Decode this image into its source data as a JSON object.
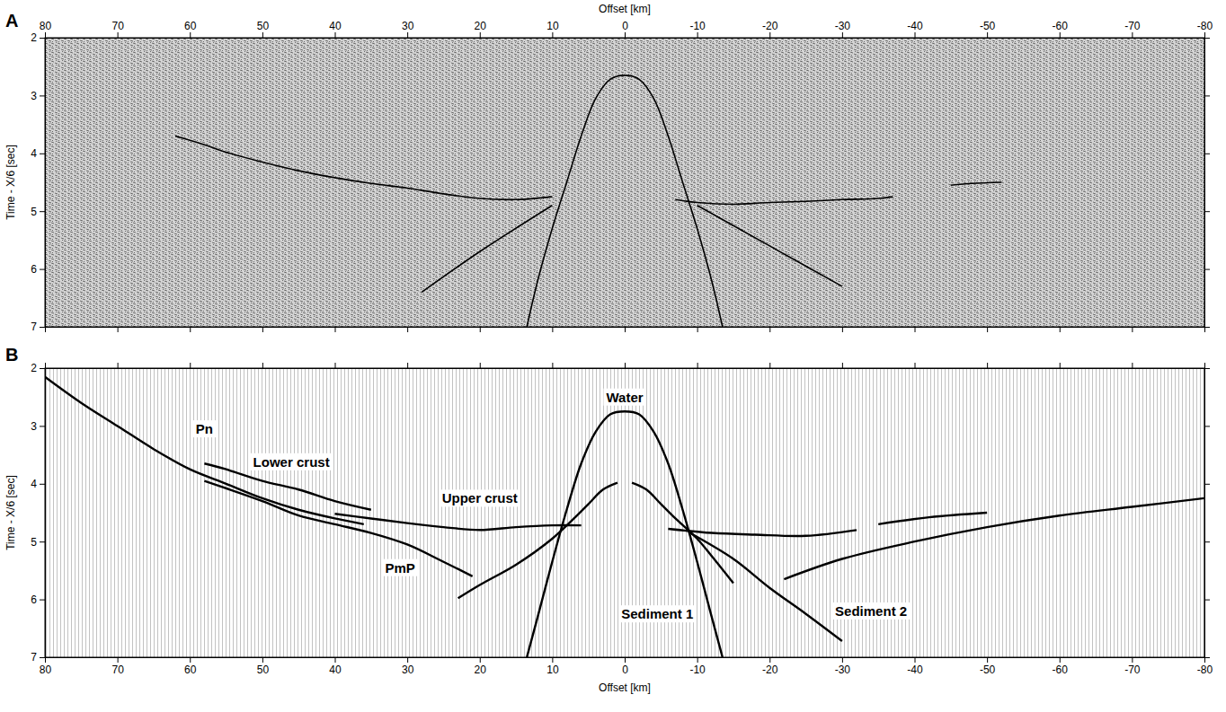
{
  "chart_data": [
    {
      "type": "line",
      "panel_label": "A",
      "x_label": "Offset [km]",
      "y_label": "Time - X/6 [sec]",
      "xlim": [
        80,
        -80
      ],
      "ylim": [
        2,
        7
      ],
      "xticks": [
        80,
        70,
        60,
        50,
        40,
        30,
        20,
        10,
        0,
        -10,
        -20,
        -30,
        -40,
        -50,
        -60,
        -70,
        -80
      ],
      "yticks": [
        2,
        3,
        4,
        5,
        6,
        7
      ],
      "series": [
        {
          "color": "#000000",
          "x": [
            62,
            58,
            55,
            50,
            45,
            40,
            35,
            30,
            25,
            20,
            15,
            10
          ],
          "values": [
            3.7,
            3.85,
            3.98,
            4.15,
            4.3,
            4.42,
            4.52,
            4.6,
            4.7,
            4.78,
            4.8,
            4.75
          ]
        },
        {
          "color": "#000000",
          "x": [
            -7,
            -10,
            -15,
            -20,
            -25,
            -30,
            -35,
            -37
          ],
          "values": [
            4.8,
            4.85,
            4.88,
            4.85,
            4.83,
            4.8,
            4.78,
            4.75
          ]
        },
        {
          "color": "#000000",
          "x": [
            -45,
            -48,
            -52
          ],
          "values": [
            4.55,
            4.52,
            4.5
          ]
        },
        {
          "color": "#000000",
          "x": [
            13.5,
            12,
            10,
            8,
            6,
            4,
            2,
            0,
            -2,
            -4,
            -6,
            -8,
            -10,
            -12,
            -13.5
          ],
          "values": [
            7,
            6.2,
            5.3,
            4.5,
            3.7,
            3.05,
            2.72,
            2.65,
            2.72,
            3.05,
            3.7,
            4.5,
            5.3,
            6.2,
            7
          ]
        },
        {
          "color": "#000000",
          "x": [
            10,
            20,
            28
          ],
          "values": [
            4.9,
            5.7,
            6.4
          ]
        },
        {
          "color": "#000000",
          "x": [
            -10,
            -20,
            -30
          ],
          "values": [
            4.9,
            5.6,
            6.3
          ]
        }
      ]
    },
    {
      "type": "line",
      "panel_label": "B",
      "x_label": "Offset [km]",
      "y_label": "Time - X/6 [sec]",
      "xlim": [
        80,
        -80
      ],
      "ylim": [
        2,
        7
      ],
      "xticks": [
        80,
        70,
        60,
        50,
        40,
        30,
        20,
        10,
        0,
        -10,
        -20,
        -30,
        -40,
        -50,
        -60,
        -70,
        -80
      ],
      "yticks": [
        2,
        3,
        4,
        5,
        6,
        7
      ],
      "series": [
        {
          "color": "#000000",
          "x": [
            13.5,
            12,
            10,
            8,
            6,
            4,
            2,
            0,
            -2,
            -4,
            -6,
            -8,
            -10,
            -12,
            -13.5
          ],
          "values": [
            7,
            6.3,
            5.35,
            4.45,
            3.65,
            3.1,
            2.8,
            2.75,
            2.8,
            3.1,
            3.65,
            4.45,
            5.35,
            6.3,
            7
          ]
        },
        {
          "color": "#000000",
          "x": [
            1,
            3,
            5,
            7,
            10,
            15,
            20,
            23
          ],
          "values": [
            3.98,
            4.1,
            4.35,
            4.6,
            4.95,
            5.4,
            5.75,
            5.98
          ]
        },
        {
          "color": "#000000",
          "x": [
            -1,
            -3,
            -5,
            -7,
            -10,
            -12,
            -15
          ],
          "values": [
            3.98,
            4.1,
            4.35,
            4.6,
            4.95,
            5.25,
            5.72
          ]
        },
        {
          "color": "#000000",
          "x": [
            -9,
            -15,
            -20,
            -25,
            -30
          ],
          "values": [
            4.85,
            5.3,
            5.8,
            6.25,
            6.72
          ]
        },
        {
          "color": "#000000",
          "x": [
            6,
            10,
            15,
            20,
            25,
            30,
            35,
            40
          ],
          "values": [
            4.72,
            4.72,
            4.75,
            4.8,
            4.75,
            4.68,
            4.6,
            4.52
          ]
        },
        {
          "color": "#000000",
          "x": [
            35,
            40,
            45,
            50,
            55,
            58
          ],
          "values": [
            4.45,
            4.3,
            4.1,
            3.95,
            3.75,
            3.65
          ]
        },
        {
          "color": "#000000",
          "x": [
            80,
            75,
            70,
            65,
            60,
            55,
            50,
            45,
            40,
            36
          ],
          "values": [
            2.15,
            2.6,
            3.0,
            3.4,
            3.75,
            4.0,
            4.25,
            4.45,
            4.6,
            4.7
          ]
        },
        {
          "color": "#000000",
          "x": [
            58,
            50,
            45,
            40,
            35,
            30,
            25,
            21
          ],
          "values": [
            3.95,
            4.3,
            4.55,
            4.7,
            4.85,
            5.05,
            5.35,
            5.6
          ]
        },
        {
          "color": "#000000",
          "x": [
            -6,
            -12,
            -18,
            -25,
            -32
          ],
          "values": [
            4.78,
            4.85,
            4.88,
            4.9,
            4.8
          ]
        },
        {
          "color": "#000000",
          "x": [
            -22,
            -30,
            -40,
            -50,
            -60,
            -70,
            -80
          ],
          "values": [
            5.65,
            5.3,
            5.0,
            4.75,
            4.55,
            4.4,
            4.25
          ]
        },
        {
          "color": "#000000",
          "x": [
            -35,
            -42,
            -50
          ],
          "values": [
            4.7,
            4.58,
            4.5
          ]
        }
      ],
      "annotations": [
        {
          "text": "Water",
          "x": 0,
          "y": 2.5
        },
        {
          "text": "Pn",
          "x": 58,
          "y": 3.05
        },
        {
          "text": "Lower crust",
          "x": 46,
          "y": 3.62
        },
        {
          "text": "Upper crust",
          "x": 20,
          "y": 4.25
        },
        {
          "text": "PmP",
          "x": 31,
          "y": 5.45
        },
        {
          "text": "Sediment 1",
          "x": -4.5,
          "y": 6.25
        },
        {
          "text": "Sediment 2",
          "x": -34,
          "y": 6.2
        }
      ]
    }
  ]
}
